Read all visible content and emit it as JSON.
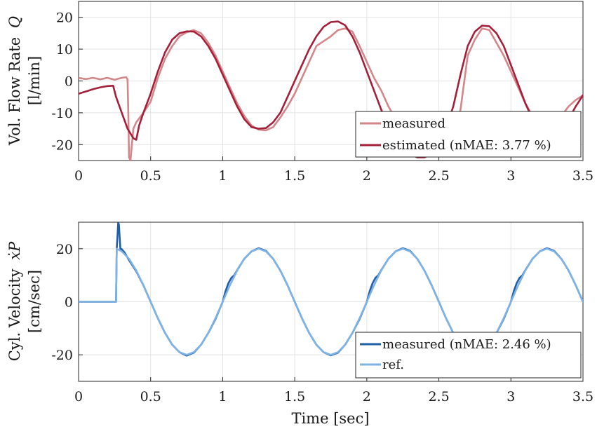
{
  "chart_data": [
    {
      "type": "line",
      "ylabel_line1": "Vol. Flow Rate",
      "ylabel_symbol": "Q",
      "ylabel_line2": "[l/min]",
      "xlabel": "",
      "xlim": [
        0,
        3.5
      ],
      "ylim": [
        -25,
        25
      ],
      "xticks": [
        0,
        0.5,
        1,
        1.5,
        2,
        2.5,
        3,
        3.5
      ],
      "xtick_labels": [
        "0",
        "0.5",
        "1",
        "1.5",
        "2",
        "2.5",
        "3",
        "3.5"
      ],
      "yticks": [
        20,
        10,
        0,
        -10,
        -20
      ],
      "ytick_labels": [
        "20",
        "10",
        "0",
        "-10",
        "-20"
      ],
      "grid": true,
      "legend_position": "bottom-right",
      "series": [
        {
          "name": "measured",
          "color": "#d4868a",
          "x": [
            0,
            0.05,
            0.1,
            0.15,
            0.2,
            0.25,
            0.3,
            0.33,
            0.34,
            0.345,
            0.35,
            0.36,
            0.37,
            0.38,
            0.4,
            0.45,
            0.5,
            0.55,
            0.6,
            0.65,
            0.7,
            0.75,
            0.8,
            0.85,
            0.9,
            0.95,
            1.0,
            1.05,
            1.1,
            1.15,
            1.2,
            1.25,
            1.3,
            1.35,
            1.4,
            1.45,
            1.5,
            1.55,
            1.6,
            1.65,
            1.7,
            1.75,
            1.8,
            1.85,
            1.9,
            1.95,
            2.0,
            2.05,
            2.1,
            2.15,
            2.2,
            2.25,
            2.3,
            2.35,
            2.4,
            2.45,
            2.5,
            2.55,
            2.6,
            2.65,
            2.7,
            2.75,
            2.8,
            2.85,
            2.9,
            2.95,
            3.0,
            3.05,
            3.1,
            3.15,
            3.2,
            3.25,
            3.3,
            3.35,
            3.4,
            3.45,
            3.5
          ],
          "y": [
            1,
            0.6,
            1,
            0.5,
            1,
            0.4,
            1,
            1.2,
            0.5,
            -10,
            -24,
            -25,
            -20,
            -15,
            -13,
            -10,
            -6.5,
            1,
            7,
            11,
            14,
            15.3,
            16,
            15,
            12,
            8,
            3,
            -2,
            -7,
            -11,
            -14,
            -15.3,
            -15.5,
            -14.5,
            -11.5,
            -8,
            -4,
            1,
            6,
            11,
            12.5,
            14,
            16,
            16.5,
            15.5,
            11,
            6,
            1,
            -3,
            -8,
            -12,
            -16,
            -18,
            -20,
            -21,
            -21,
            -21,
            -20,
            -17,
            -9,
            8,
            13,
            16.5,
            16,
            12,
            8,
            3,
            -2,
            -7,
            -11,
            -14,
            -14.5,
            -13.5,
            -11,
            -8,
            -6,
            -4.5
          ]
        },
        {
          "name": "estimated (nMAE: 3.77 %)",
          "color": "#a31f3a",
          "x": [
            0,
            0.05,
            0.1,
            0.15,
            0.2,
            0.24,
            0.26,
            0.3,
            0.34,
            0.38,
            0.4,
            0.42,
            0.45,
            0.5,
            0.55,
            0.6,
            0.65,
            0.7,
            0.75,
            0.8,
            0.85,
            0.9,
            0.95,
            1.0,
            1.05,
            1.1,
            1.15,
            1.2,
            1.25,
            1.3,
            1.35,
            1.4,
            1.45,
            1.5,
            1.55,
            1.6,
            1.65,
            1.7,
            1.75,
            1.8,
            1.85,
            1.9,
            1.95,
            2.0,
            2.05,
            2.1,
            2.15,
            2.2,
            2.25,
            2.3,
            2.35,
            2.4,
            2.45,
            2.5,
            2.55,
            2.6,
            2.65,
            2.7,
            2.75,
            2.8,
            2.85,
            2.9,
            2.95,
            3.0,
            3.05,
            3.1,
            3.15,
            3.2,
            3.25,
            3.3,
            3.35,
            3.4,
            3.45,
            3.5
          ],
          "y": [
            -4,
            -3.3,
            -2.6,
            -2,
            -1.6,
            -1.5,
            -5,
            -10,
            -15,
            -18,
            -18.5,
            -14,
            -10,
            -4,
            3,
            9,
            13,
            15,
            15.6,
            15.5,
            14,
            11,
            7,
            2,
            -3,
            -8,
            -12,
            -14.5,
            -15,
            -14.8,
            -13,
            -10,
            -5,
            0,
            5,
            10,
            14,
            17,
            18.5,
            18.7,
            17.5,
            14,
            9,
            3,
            -3,
            -9,
            -14,
            -18,
            -21,
            -23,
            -24,
            -24,
            -23,
            -20,
            -15,
            -8,
            2,
            11,
            15.5,
            17.4,
            17.2,
            15,
            11,
            5,
            -1,
            -7,
            -12,
            -16,
            -18.5,
            -18.5,
            -16,
            -12,
            -8,
            -4.5
          ]
        }
      ]
    },
    {
      "type": "line",
      "ylabel_line1": "Cyl. Velocity",
      "ylabel_symbol": "ẋP",
      "ylabel_line2": "[cm/sec]",
      "xlabel": "Time [sec]",
      "xlim": [
        0,
        3.5
      ],
      "ylim": [
        -30,
        30
      ],
      "xticks": [
        0,
        0.5,
        1,
        1.5,
        2,
        2.5,
        3,
        3.5
      ],
      "xtick_labels": [
        "0",
        "0.5",
        "1",
        "1.5",
        "2",
        "2.5",
        "3",
        "3.5"
      ],
      "yticks": [
        20,
        0,
        -20
      ],
      "ytick_labels": [
        "20",
        "0",
        "-20"
      ],
      "grid": true,
      "legend_position": "bottom-right",
      "series": [
        {
          "name": "measured (nMAE: 2.46 %)",
          "color": "#1f5ea8",
          "x": [
            0,
            0.26,
            0.265,
            0.27,
            0.275,
            0.28,
            0.29,
            0.3,
            0.32,
            0.35,
            0.4,
            0.45,
            0.5,
            0.55,
            0.6,
            0.65,
            0.7,
            0.75,
            0.8,
            0.85,
            0.9,
            0.95,
            1.0,
            1.02,
            1.04,
            1.06,
            1.08,
            1.1,
            1.15,
            1.2,
            1.25,
            1.3,
            1.35,
            1.4,
            1.45,
            1.5,
            1.55,
            1.6,
            1.65,
            1.7,
            1.75,
            1.8,
            1.85,
            1.9,
            1.95,
            2.0,
            2.02,
            2.04,
            2.06,
            2.08,
            2.1,
            2.15,
            2.2,
            2.25,
            2.3,
            2.35,
            2.4,
            2.45,
            2.5,
            2.55,
            2.6,
            2.65,
            2.7,
            2.75,
            2.8,
            2.85,
            2.9,
            2.95,
            3.0,
            3.02,
            3.04,
            3.06,
            3.08,
            3.1,
            3.15,
            3.2,
            3.25,
            3.3,
            3.35,
            3.4,
            3.45,
            3.5
          ],
          "y": [
            0,
            0,
            20,
            25,
            30,
            29,
            20,
            19.8,
            18.5,
            15.7,
            11.5,
            6.2,
            0,
            -6.2,
            -11.8,
            -16.2,
            -19,
            -20.3,
            -19.2,
            -16.2,
            -11.8,
            -6.5,
            0,
            4,
            7,
            9,
            10,
            11.9,
            16.2,
            19,
            20.2,
            19.2,
            16.2,
            11.8,
            6.2,
            0,
            -6.2,
            -11.8,
            -16.2,
            -19,
            -20.2,
            -19.2,
            -16.2,
            -11.8,
            -6.5,
            0,
            4,
            7,
            9,
            10,
            11.9,
            16.2,
            19,
            20.2,
            19.2,
            16.2,
            11.8,
            6.2,
            0,
            -6.2,
            -11.8,
            -16.2,
            -19,
            -20.2,
            -19.2,
            -16.2,
            -11.8,
            -6.5,
            0,
            4,
            7,
            9,
            10,
            11.9,
            16.2,
            19,
            20.2,
            19.2,
            16.2,
            11.8,
            6.2,
            0
          ]
        },
        {
          "name": "ref.",
          "color": "#7fb2e5",
          "x": [
            0,
            0.26,
            0.265,
            0.3,
            0.35,
            0.4,
            0.45,
            0.5,
            0.55,
            0.6,
            0.65,
            0.7,
            0.75,
            0.8,
            0.85,
            0.9,
            0.95,
            1.0,
            1.05,
            1.1,
            1.15,
            1.2,
            1.25,
            1.3,
            1.35,
            1.4,
            1.45,
            1.5,
            1.55,
            1.6,
            1.65,
            1.7,
            1.75,
            1.8,
            1.85,
            1.9,
            1.95,
            2.0,
            2.05,
            2.1,
            2.15,
            2.2,
            2.25,
            2.3,
            2.35,
            2.4,
            2.45,
            2.5,
            2.55,
            2.6,
            2.65,
            2.7,
            2.75,
            2.8,
            2.85,
            2.9,
            2.95,
            3.0,
            3.05,
            3.1,
            3.15,
            3.2,
            3.25,
            3.3,
            3.35,
            3.4,
            3.45,
            3.5
          ],
          "y": [
            0,
            0,
            20,
            19,
            16.2,
            11.8,
            6.2,
            0,
            -6.2,
            -11.8,
            -16.2,
            -19,
            -20,
            -19,
            -16.2,
            -11.8,
            -6.2,
            0,
            6.2,
            11.8,
            16.2,
            19,
            20,
            19,
            16.2,
            11.8,
            6.2,
            0,
            -6.2,
            -11.8,
            -16.2,
            -19,
            -20,
            -19,
            -16.2,
            -11.8,
            -6.2,
            0,
            6.2,
            11.8,
            16.2,
            19,
            20,
            19,
            16.2,
            11.8,
            6.2,
            0,
            -6.2,
            -11.8,
            -16.2,
            -19,
            -20,
            -19,
            -16.2,
            -11.8,
            -6.2,
            0,
            6.2,
            11.8,
            16.2,
            19,
            20,
            19,
            16.2,
            11.8,
            6.2,
            0
          ]
        }
      ]
    }
  ]
}
